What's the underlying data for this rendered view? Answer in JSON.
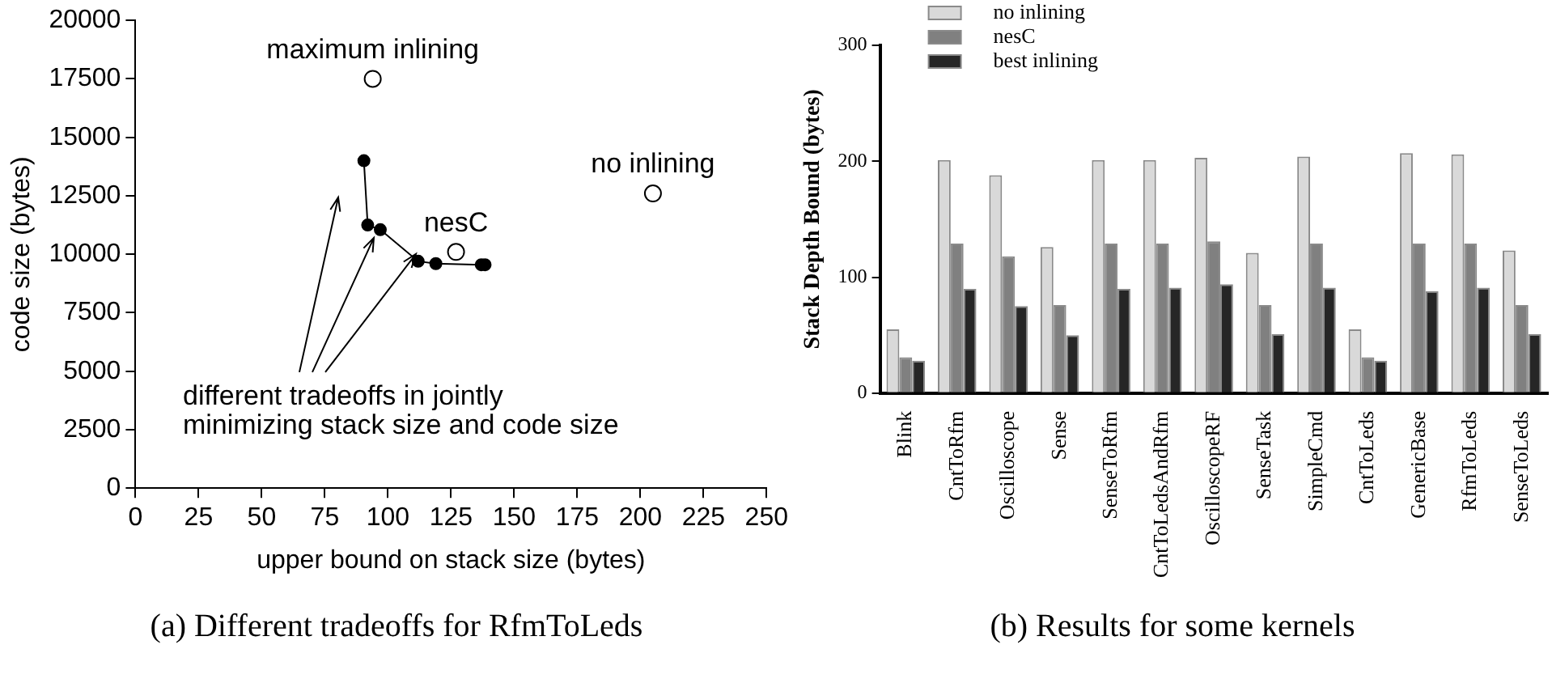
{
  "chart_data": [
    {
      "type": "scatter",
      "xlabel": "upper bound on stack size (bytes)",
      "ylabel": "code size (bytes)",
      "xlim": [
        0,
        250
      ],
      "xticks": [
        0,
        25,
        50,
        75,
        100,
        125,
        150,
        175,
        200,
        225,
        250
      ],
      "ylim": [
        0,
        20000
      ],
      "yticks": [
        0,
        2500,
        5000,
        7500,
        10000,
        12500,
        15000,
        17500,
        20000
      ],
      "grid": false,
      "legend": false,
      "marker": "circle",
      "series": [
        {
          "type": "scatter",
          "color": "#000000",
          "x": [
            94,
            205,
            127
          ],
          "values": [
            17500,
            12600,
            10100
          ]
        },
        {
          "type": "line",
          "color": "#000000",
          "x": [
            90.5,
            92,
            97,
            112,
            119,
            137,
            138.5
          ],
          "values": [
            14000,
            11250,
            11050,
            9700,
            9600,
            9550,
            9550
          ]
        }
      ],
      "annotations": [
        {
          "text": "maximum inlining",
          "x": 94,
          "y": 17500
        },
        {
          "text": "no inlining",
          "x": 205,
          "y": 12600
        },
        {
          "text": "nesC",
          "x": 127,
          "y": 10100
        },
        {
          "text": "different tradeoffs in jointly minimizing stack size and code size",
          "x": 97,
          "y": 11050
        },
        "(a) Different tradeoffs for RfmToLeds"
      ]
    },
    {
      "type": "bar",
      "ylabel": "Stack Depth Bound (bytes)",
      "categories": [
        "Blink",
        "CntToRfm",
        "Oscilloscope",
        "Sense",
        "SenseToRfm",
        "CntToLedsAndRfm",
        "OscilloscopeRF",
        "SenseTask",
        "SimpleCmd",
        "CntToLeds",
        "GenericBase",
        "RfmToLeds",
        "SenseToLeds"
      ],
      "ylim": [
        0,
        300
      ],
      "yticks": [
        0,
        100,
        200,
        300
      ],
      "grid": false,
      "legend": "top left",
      "series": [
        {
          "name": "no inlining",
          "color": "#d9d9d9",
          "values": [
            55,
            201,
            188,
            126,
            201,
            201,
            203,
            121,
            204,
            55,
            207,
            206,
            123
          ]
        },
        {
          "name": "nesC",
          "color": "#808080",
          "values": [
            31,
            129,
            118,
            76,
            129,
            129,
            131,
            76,
            129,
            31,
            129,
            129,
            76
          ]
        },
        {
          "name": "best inlining",
          "color": "#262626",
          "values": [
            28,
            90,
            75,
            50,
            90,
            91,
            94,
            51,
            91,
            28,
            88,
            91,
            51
          ]
        }
      ],
      "annotations": [
        "(b) Results for some kernels"
      ]
    }
  ]
}
